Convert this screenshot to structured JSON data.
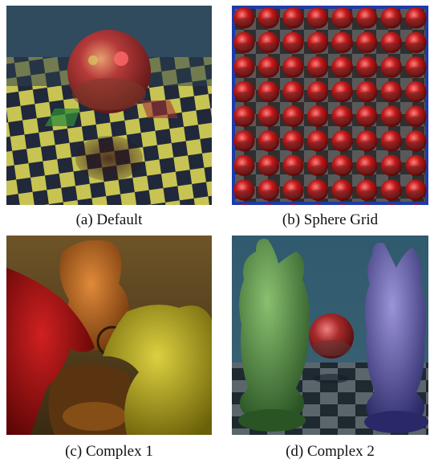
{
  "figures": [
    {
      "caption": "(a) Default"
    },
    {
      "caption": "(b) Sphere Grid"
    },
    {
      "caption": "(c) Complex 1"
    },
    {
      "caption": "(d) Complex 2"
    }
  ]
}
